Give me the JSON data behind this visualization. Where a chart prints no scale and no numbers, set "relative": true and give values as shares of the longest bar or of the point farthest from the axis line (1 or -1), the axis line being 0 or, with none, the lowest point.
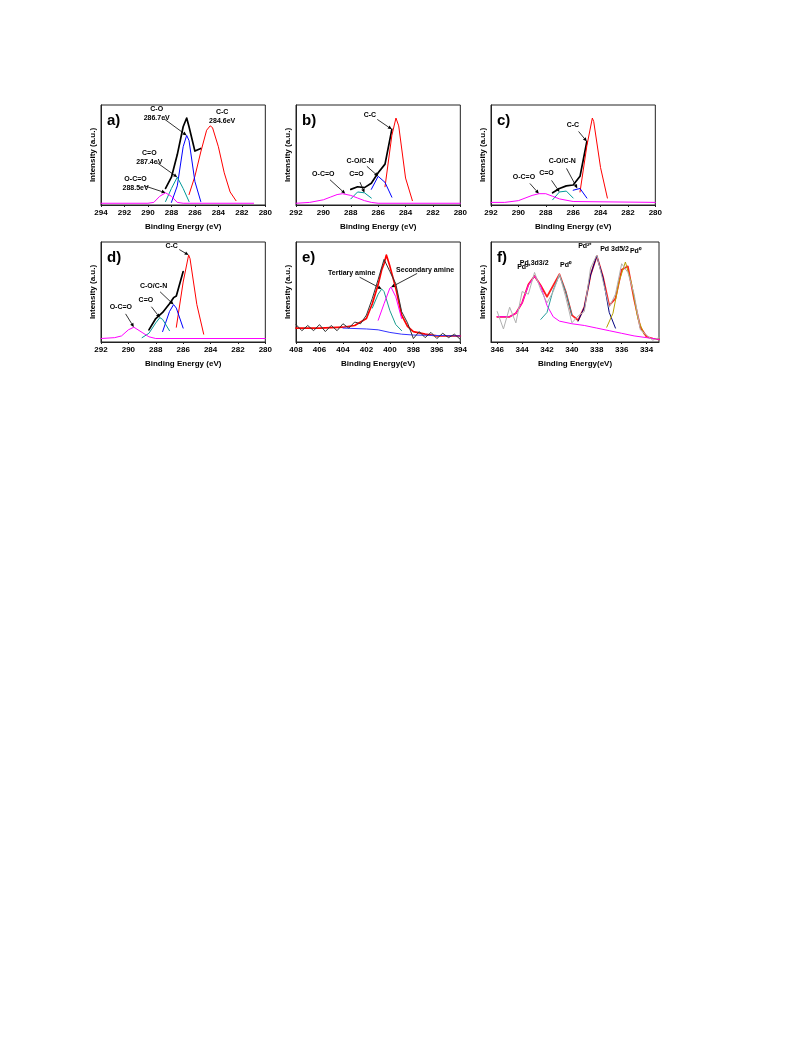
{
  "chart_data": [
    {
      "type": "line",
      "title": "a)",
      "xlabel": "Binding Energy (eV)",
      "ylabel": "Intensity (a.u.)",
      "relative": true,
      "tick_labels": "x",
      "xlim": [
        294,
        280
      ],
      "xticks": [
        294,
        292,
        290,
        288,
        286,
        284,
        282,
        280
      ],
      "series": [
        {
          "color": "#000000",
          "x": [
            288.5,
            288,
            287.5,
            287,
            286.7,
            286.5,
            286,
            285.5
          ],
          "values": [
            0.19,
            0.32,
            0.58,
            0.9,
            1.0,
            0.9,
            0.62,
            0.65
          ]
        },
        {
          "color": "#ff0000",
          "x": [
            286.5,
            286,
            285.5,
            285,
            284.7,
            284.5,
            284,
            283.5,
            283,
            282.5
          ],
          "values": [
            0.12,
            0.33,
            0.61,
            0.86,
            0.91,
            0.89,
            0.67,
            0.37,
            0.15,
            0.05
          ]
        },
        {
          "color": "#0000ff",
          "x": [
            288,
            287.5,
            287,
            286.7,
            286.5,
            286,
            285.5
          ],
          "values": [
            0.03,
            0.22,
            0.67,
            0.8,
            0.74,
            0.27,
            0.04
          ]
        },
        {
          "color": "#009999",
          "x": [
            288.5,
            288,
            287.5,
            287,
            286.5
          ],
          "values": [
            0.04,
            0.19,
            0.32,
            0.19,
            0.04
          ]
        },
        {
          "color": "#ff00ff",
          "x": [
            294,
            290,
            289.5,
            289,
            288.5,
            288,
            287.5,
            287,
            286.5,
            281
          ],
          "values": [
            0.02,
            0.02,
            0.03,
            0.1,
            0.14,
            0.1,
            0.03,
            0.02,
            0.02,
            0.02
          ]
        }
      ],
      "annotations": [
        {
          "text": "C-O\n286.7eV",
          "x": 286.7,
          "y": 0.8
        },
        {
          "text": "C-C\n284.6eV",
          "x": 284.7,
          "y": 0.91
        },
        {
          "text": "C=O\n287.4eV",
          "x": 287.5,
          "y": 0.32
        },
        {
          "text": "O-C=O\n288.5eV",
          "x": 288.5,
          "y": 0.14
        }
      ]
    },
    {
      "type": "line",
      "title": "b)",
      "xlabel": "Binding Energy (eV)",
      "ylabel": "Intensity (a.u.)",
      "relative": true,
      "tick_labels": "x",
      "xlim": [
        292,
        280
      ],
      "xticks": [
        292,
        290,
        288,
        286,
        284,
        282,
        280
      ],
      "series": [
        {
          "color": "#000000",
          "x": [
            288,
            287.5,
            287,
            286.5,
            286,
            285.5,
            285
          ],
          "values": [
            0.18,
            0.21,
            0.2,
            0.25,
            0.37,
            0.47,
            0.87
          ]
        },
        {
          "color": "#ff0000",
          "x": [
            285.5,
            285,
            284.7,
            284.5,
            284,
            283.5
          ],
          "values": [
            0.21,
            0.8,
            1.0,
            0.91,
            0.31,
            0.05
          ]
        },
        {
          "color": "#0000ff",
          "x": [
            286.5,
            286,
            285.5,
            285
          ],
          "values": [
            0.18,
            0.33,
            0.26,
            0.09
          ]
        },
        {
          "color": "#009999",
          "x": [
            288,
            287.5,
            287,
            286.5
          ],
          "values": [
            0.07,
            0.15,
            0.14,
            0.08
          ]
        },
        {
          "color": "#ff00ff",
          "x": [
            292,
            291,
            290,
            289.5,
            289,
            288.6,
            288,
            287.5,
            287,
            286.5,
            286,
            280
          ],
          "values": [
            0.02,
            0.03,
            0.06,
            0.09,
            0.12,
            0.13,
            0.11,
            0.08,
            0.05,
            0.03,
            0.02,
            0.02
          ]
        }
      ],
      "annotations": [
        {
          "text": "C-C",
          "x": 285.0,
          "y": 0.87
        },
        {
          "text": "C-O/C-N",
          "x": 286.0,
          "y": 0.33
        },
        {
          "text": "O-C=O",
          "x": 288.4,
          "y": 0.13
        },
        {
          "text": "C=O",
          "x": 287.0,
          "y": 0.14
        }
      ]
    },
    {
      "type": "line",
      "title": "c)",
      "xlabel": "Binding Energy (eV)",
      "ylabel": "Intensity (a.u.)",
      "relative": true,
      "tick_labels": "x",
      "xlim": [
        292,
        280
      ],
      "xticks": [
        292,
        290,
        288,
        286,
        284,
        282,
        280
      ],
      "series": [
        {
          "color": "#000000",
          "x": [
            287.5,
            287,
            286.5,
            286,
            285.5,
            285
          ],
          "values": [
            0.14,
            0.19,
            0.22,
            0.23,
            0.33,
            0.73
          ]
        },
        {
          "color": "#ff0000",
          "x": [
            285.5,
            285,
            284.6,
            284.5,
            284,
            283.5
          ],
          "values": [
            0.15,
            0.68,
            1.0,
            0.96,
            0.43,
            0.08
          ]
        },
        {
          "color": "#0000ff",
          "x": [
            286,
            285.5,
            285
          ],
          "values": [
            0.17,
            0.19,
            0.08
          ]
        },
        {
          "color": "#009999",
          "x": [
            287.5,
            287,
            286.5,
            286
          ],
          "values": [
            0.06,
            0.15,
            0.16,
            0.08
          ]
        },
        {
          "color": "#ff00ff",
          "x": [
            292,
            291,
            290,
            289,
            288.5,
            288,
            287.5,
            287,
            286,
            280
          ],
          "values": [
            0.03,
            0.03,
            0.05,
            0.11,
            0.13,
            0.13,
            0.1,
            0.07,
            0.04,
            0.03
          ]
        }
      ],
      "annotations": [
        {
          "text": "C-C",
          "x": 285.0,
          "y": 0.73
        },
        {
          "text": "C-O/C-N",
          "x": 285.7,
          "y": 0.19
        },
        {
          "text": "C=O",
          "x": 287.0,
          "y": 0.15
        },
        {
          "text": "O-C=O",
          "x": 288.5,
          "y": 0.13
        }
      ]
    },
    {
      "type": "line",
      "title": "d)",
      "xlabel": "Binding Energy (eV)",
      "ylabel": "Intensity (a.u.)",
      "relative": true,
      "tick_labels": "x",
      "xlim": [
        292,
        280
      ],
      "xticks": [
        292,
        290,
        288,
        286,
        284,
        282,
        280
      ],
      "series": [
        {
          "color": "#000000",
          "x": [
            288.5,
            288,
            287.5,
            287,
            286.7,
            286.5,
            286
          ],
          "values": [
            0.14,
            0.27,
            0.34,
            0.44,
            0.51,
            0.53,
            0.81
          ]
        },
        {
          "color": "#ff0000",
          "x": [
            286.5,
            286,
            285.6,
            285.5,
            285,
            284.5
          ],
          "values": [
            0.17,
            0.69,
            1.0,
            0.96,
            0.43,
            0.09
          ]
        },
        {
          "color": "#0000ff",
          "x": [
            287.5,
            287,
            286.7,
            286.5,
            286
          ],
          "values": [
            0.12,
            0.35,
            0.43,
            0.39,
            0.16
          ]
        },
        {
          "color": "#009999",
          "x": [
            289,
            288.5,
            288,
            287.7,
            287.5,
            287
          ],
          "values": [
            0.05,
            0.1,
            0.22,
            0.28,
            0.26,
            0.13
          ]
        },
        {
          "color": "#ff00ff",
          "x": [
            292,
            291,
            290.5,
            290,
            289.6,
            289,
            288.5,
            288,
            280
          ],
          "values": [
            0.04,
            0.05,
            0.07,
            0.14,
            0.17,
            0.11,
            0.06,
            0.04,
            0.04
          ]
        }
      ],
      "annotations": [
        {
          "text": "C-C",
          "x": 285.6,
          "y": 1.0
        },
        {
          "text": "C-O/C-N",
          "x": 286.7,
          "y": 0.43
        },
        {
          "text": "C=O",
          "x": 287.7,
          "y": 0.28
        },
        {
          "text": "O-C=O",
          "x": 289.6,
          "y": 0.17
        }
      ]
    },
    {
      "type": "line",
      "title": "e)",
      "xlabel": "Binding Energy(eV)",
      "ylabel": "Intensity (a.u.)",
      "relative": true,
      "tick_labels": "x",
      "xlim": [
        408,
        394
      ],
      "xticks": [
        408,
        406,
        404,
        402,
        400,
        398,
        396,
        394
      ],
      "series": [
        {
          "color": "#ff0000",
          "x": [
            408,
            406,
            404,
            403,
            402,
            401.5,
            401,
            400.7,
            400.5,
            400.3,
            400,
            399.5,
            399,
            398.5,
            398,
            397,
            396,
            394
          ],
          "values": [
            0.16,
            0.16,
            0.17,
            0.19,
            0.27,
            0.44,
            0.66,
            0.83,
            0.9,
            1.0,
            0.87,
            0.62,
            0.31,
            0.18,
            0.12,
            0.09,
            0.07,
            0.07
          ]
        },
        {
          "color": "#3333ff",
          "x": [
            404,
            402,
            401,
            400,
            399,
            398,
            394
          ],
          "values": [
            0.16,
            0.15,
            0.14,
            0.11,
            0.09,
            0.08,
            0.07
          ]
        },
        {
          "color": "#1a9e8f",
          "x": [
            401.5,
            401,
            400.7,
            400.5,
            400,
            399.5,
            399
          ],
          "values": [
            0.39,
            0.55,
            0.61,
            0.58,
            0.36,
            0.2,
            0.13
          ]
        },
        {
          "color": "#ff00ff",
          "x": [
            401,
            400.5,
            400,
            399.9,
            399.5,
            399
          ],
          "values": [
            0.25,
            0.44,
            0.62,
            0.63,
            0.52,
            0.27
          ]
        },
        {
          "color": "#333333",
          "x": [
            408,
            407.5,
            407,
            406.5,
            406,
            405.5,
            405,
            404.5,
            404,
            403.5,
            403,
            402.5,
            402,
            401.5,
            401,
            400.5,
            400,
            399.5,
            399,
            398.5,
            398,
            397.5,
            397,
            396.5,
            396,
            395.5,
            395,
            394.5,
            394
          ],
          "values": [
            0.2,
            0.13,
            0.19,
            0.13,
            0.2,
            0.12,
            0.19,
            0.13,
            0.21,
            0.16,
            0.23,
            0.21,
            0.31,
            0.5,
            0.72,
            0.95,
            0.81,
            0.67,
            0.35,
            0.22,
            0.04,
            0.12,
            0.05,
            0.11,
            0.04,
            0.1,
            0.05,
            0.09,
            0.03
          ]
        }
      ],
      "annotations": [
        {
          "text": "Tertiary amine",
          "x": 400.7,
          "y": 0.61
        },
        {
          "text": "Secondary amine",
          "x": 399.9,
          "y": 0.63
        }
      ]
    },
    {
      "type": "line",
      "title": "f)",
      "xlabel": "Binding Energy(eV)",
      "ylabel": "Intensity (a.u.)",
      "relative": true,
      "tick_labels": "x",
      "xlim": [
        346.5,
        333
      ],
      "xticks": [
        346,
        344,
        342,
        340,
        338,
        336,
        334
      ],
      "series": [
        {
          "color": "#ff2020",
          "x": [
            346,
            345.5,
            345,
            344.5,
            344,
            343.5,
            343,
            342.5,
            342,
            341.5,
            341,
            340.5,
            340,
            339.5,
            339,
            338.5,
            338,
            337.5,
            337,
            336.5,
            336,
            335.5,
            335,
            334.5,
            334,
            333.5,
            333
          ],
          "values": [
            0.29,
            0.29,
            0.29,
            0.33,
            0.45,
            0.66,
            0.76,
            0.65,
            0.52,
            0.65,
            0.78,
            0.58,
            0.31,
            0.25,
            0.4,
            0.77,
            0.99,
            0.75,
            0.42,
            0.5,
            0.83,
            0.87,
            0.49,
            0.17,
            0.06,
            0.04,
            0.03
          ]
        },
        {
          "color": "#ff00ff",
          "x": [
            346,
            345,
            344.5,
            344,
            343.5,
            343,
            342.5,
            342,
            341.5,
            341,
            340,
            339,
            338,
            337,
            336,
            335,
            334,
            333
          ],
          "values": [
            0.29,
            0.29,
            0.33,
            0.45,
            0.65,
            0.76,
            0.64,
            0.42,
            0.29,
            0.24,
            0.21,
            0.19,
            0.16,
            0.13,
            0.1,
            0.07,
            0.05,
            0.03
          ]
        },
        {
          "color": "#2a9d9d",
          "x": [
            342.5,
            342,
            341.5,
            341,
            340.5,
            340
          ],
          "values": [
            0.26,
            0.34,
            0.6,
            0.77,
            0.58,
            0.31
          ]
        },
        {
          "color": "#000080",
          "x": [
            339.5,
            339,
            338.5,
            338,
            337.5,
            337,
            336.5
          ],
          "values": [
            0.24,
            0.4,
            0.77,
            0.99,
            0.74,
            0.34,
            0.16
          ]
        },
        {
          "color": "#b8a000",
          "x": [
            337.2,
            336.7,
            336.2,
            335.7,
            335.2,
            334.7,
            334.2
          ],
          "values": [
            0.17,
            0.33,
            0.7,
            0.92,
            0.67,
            0.27,
            0.09
          ]
        },
        {
          "color": "#b0b0b0",
          "x": [
            346,
            345.5,
            345,
            344.5,
            344,
            343.5,
            343,
            342.5,
            342,
            341.5,
            341,
            340.5,
            340,
            339.5,
            339,
            338.5,
            338,
            337.5,
            337,
            336.5,
            336,
            335.5,
            335,
            334.5,
            334,
            333.5,
            333
          ],
          "values": [
            0.35,
            0.15,
            0.4,
            0.22,
            0.58,
            0.55,
            0.8,
            0.6,
            0.45,
            0.58,
            0.78,
            0.52,
            0.22,
            0.3,
            0.35,
            0.85,
            1.0,
            0.7,
            0.4,
            0.55,
            0.9,
            0.8,
            0.55,
            0.14,
            0.08,
            0.02,
            0.05
          ]
        }
      ],
      "annotations": [
        "Pd 3d3/2",
        "Pd 3d5/2",
        {
          "text": "Pd²⁺",
          "x": 342.9,
          "y": 0.76
        },
        {
          "text": "Pd⁰",
          "x": 341.0,
          "y": 0.77
        },
        {
          "text": "Pd²⁺",
          "x": 338.0,
          "y": 0.99
        },
        {
          "text": "Pd⁰",
          "x": 335.7,
          "y": 0.92
        }
      ]
    }
  ]
}
